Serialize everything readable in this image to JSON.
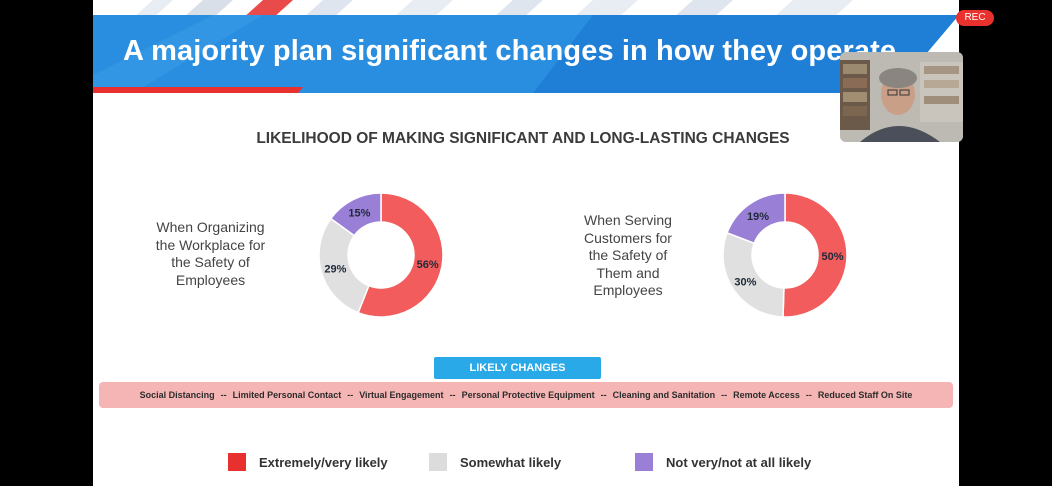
{
  "slide": {
    "title": "A majority plan significant changes in how they operate",
    "chart_title": "LIKELIHOOD OF MAKING SIGNIFICANT AND LONG-LASTING CHANGES",
    "likely_changes_label": "LIKELY CHANGES",
    "changes": [
      "Social Distancing",
      "Limited Personal Contact",
      "Virtual Engagement",
      "Personal Protective Equipment",
      "Cleaning and Sanitation",
      "Remote Access",
      "Reduced Staff On Site"
    ],
    "separator": "--"
  },
  "chart_data": [
    {
      "type": "pie",
      "title": "When Organizing the Workplace for the Safety of Employees",
      "categories": [
        "Extremely/very likely",
        "Somewhat likely",
        "Not very/not at all likely"
      ],
      "values": [
        56,
        29,
        15
      ],
      "labels": [
        "56%",
        "29%",
        "15%"
      ]
    },
    {
      "type": "pie",
      "title": "When Serving Customers for the Safety of Them and Employees",
      "categories": [
        "Extremely/very likely",
        "Somewhat likely",
        "Not very/not at all likely"
      ],
      "values": [
        50,
        30,
        19
      ],
      "labels": [
        "50%",
        "30%",
        "19%"
      ]
    }
  ],
  "legend": [
    {
      "label": "Extremely/very likely",
      "color": "#e8302f"
    },
    {
      "label": "Somewhat likely",
      "color": "#dcdcdc"
    },
    {
      "label": "Not very/not at all likely",
      "color": "#9a7fd6"
    }
  ],
  "slice_colors": [
    "#f25c5c",
    "#e0e0e0",
    "#9a7fd6"
  ],
  "recording": {
    "label": "REC",
    "color": "#e9322d"
  },
  "webcam": {
    "icon": "presenter-video"
  }
}
